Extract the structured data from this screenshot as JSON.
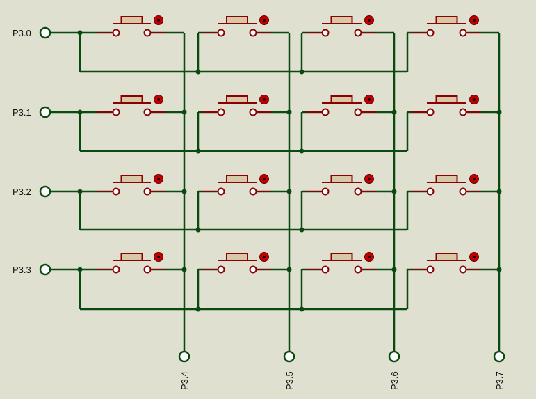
{
  "diagram": {
    "row_labels": [
      "P3.0",
      "P3.1",
      "P3.2",
      "P3.3"
    ],
    "col_labels": [
      "P3.4",
      "P3.5",
      "P3.6",
      "P3.7"
    ],
    "colors": {
      "background": "#e0e0d1",
      "wire": "#0a4a10",
      "component": "#8b0000",
      "button_fill": "#d8c8a8",
      "indicator": "#c00000"
    }
  }
}
